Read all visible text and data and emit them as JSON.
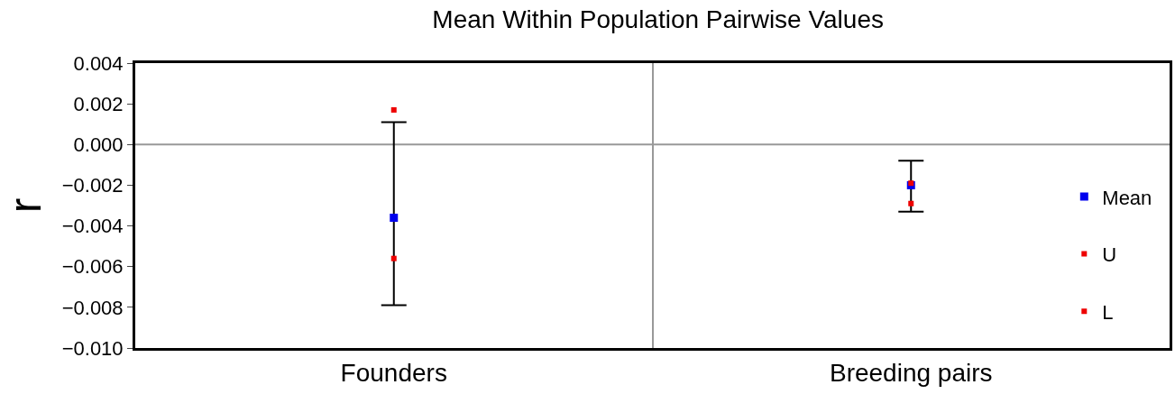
{
  "chart_data": {
    "type": "scatter",
    "title": "Mean Within Population Pairwise Values",
    "ylabel": "r",
    "categories": [
      "Founders",
      "Breeding pairs"
    ],
    "series": [
      {
        "name": "Mean",
        "color": "#0000ee",
        "values": [
          -0.0036,
          -0.002
        ],
        "errors": [
          [
            -0.0079,
            0.0011
          ],
          [
            -0.0033,
            -0.0008
          ]
        ]
      },
      {
        "name": "U",
        "color": "#ee0000",
        "values": [
          0.0017,
          -0.0019
        ]
      },
      {
        "name": "L",
        "color": "#ee0000",
        "values": [
          -0.0056,
          -0.0029
        ]
      }
    ],
    "ylim": [
      -0.01,
      0.004
    ],
    "yticks": [
      {
        "value": 0.004,
        "label": "0.004"
      },
      {
        "value": 0.002,
        "label": "0.002"
      },
      {
        "value": 0,
        "label": "0.000"
      },
      {
        "value": -0.002,
        "label": "−0.002"
      },
      {
        "value": -0.004,
        "label": "−0.004"
      },
      {
        "value": -0.006,
        "label": "−0.006"
      },
      {
        "value": -0.008,
        "label": "−0.008"
      },
      {
        "value": -0.01,
        "label": "−0.010"
      }
    ],
    "ref_lines": [
      {
        "axis": "y",
        "value": 0,
        "color": "#999999"
      }
    ],
    "grid": "x",
    "legend": "right",
    "marker": "square"
  }
}
